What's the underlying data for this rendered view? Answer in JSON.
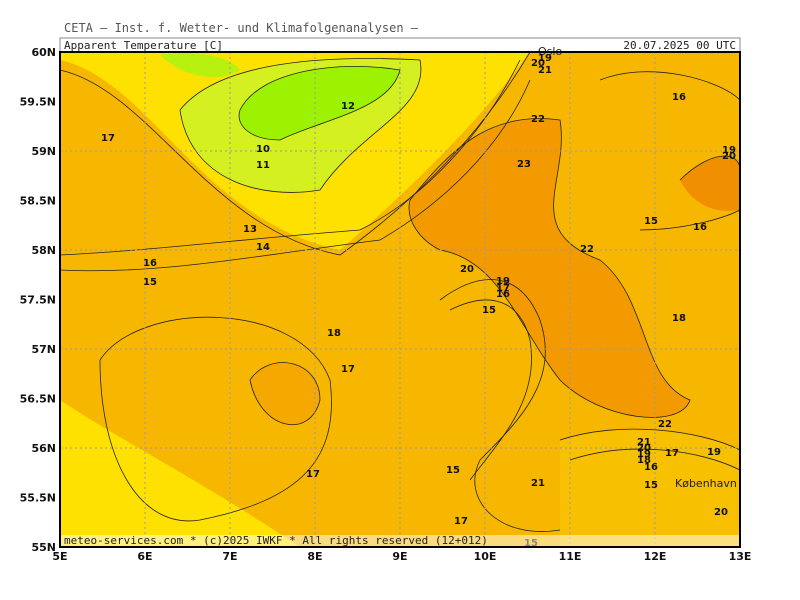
{
  "header": "CETA — Inst. f. Wetter- und Klimafolgenanalysen —",
  "title": "Apparent Temperature [C]",
  "date": "20.07.2025 00 UTC",
  "footer": "meteo-services.com * (c)2025 IWKF * All rights reserved (12+012)",
  "lat_labels": [
    "60N",
    "59.5N",
    "59N",
    "58.5N",
    "58N",
    "57.5N",
    "57N",
    "56.5N",
    "56N",
    "55.5N",
    "55N"
  ],
  "lon_labels": [
    "5E",
    "6E",
    "7E",
    "8E",
    "9E",
    "10E",
    "11E",
    "12E",
    "13E"
  ],
  "cities": [
    "Oslo",
    "København"
  ],
  "contour_labels": [
    "17",
    "12",
    "10",
    "11",
    "13",
    "14",
    "16",
    "15",
    "20",
    "19",
    "17",
    "16",
    "15",
    "18",
    "17",
    "17",
    "15",
    "21",
    "17",
    "15",
    "23",
    "22",
    "20",
    "19",
    "21",
    "16",
    "15",
    "16",
    "22",
    "18",
    "22",
    "21",
    "20",
    "19",
    "18",
    "16",
    "17",
    "19",
    "15",
    "20",
    "19",
    "20"
  ]
}
